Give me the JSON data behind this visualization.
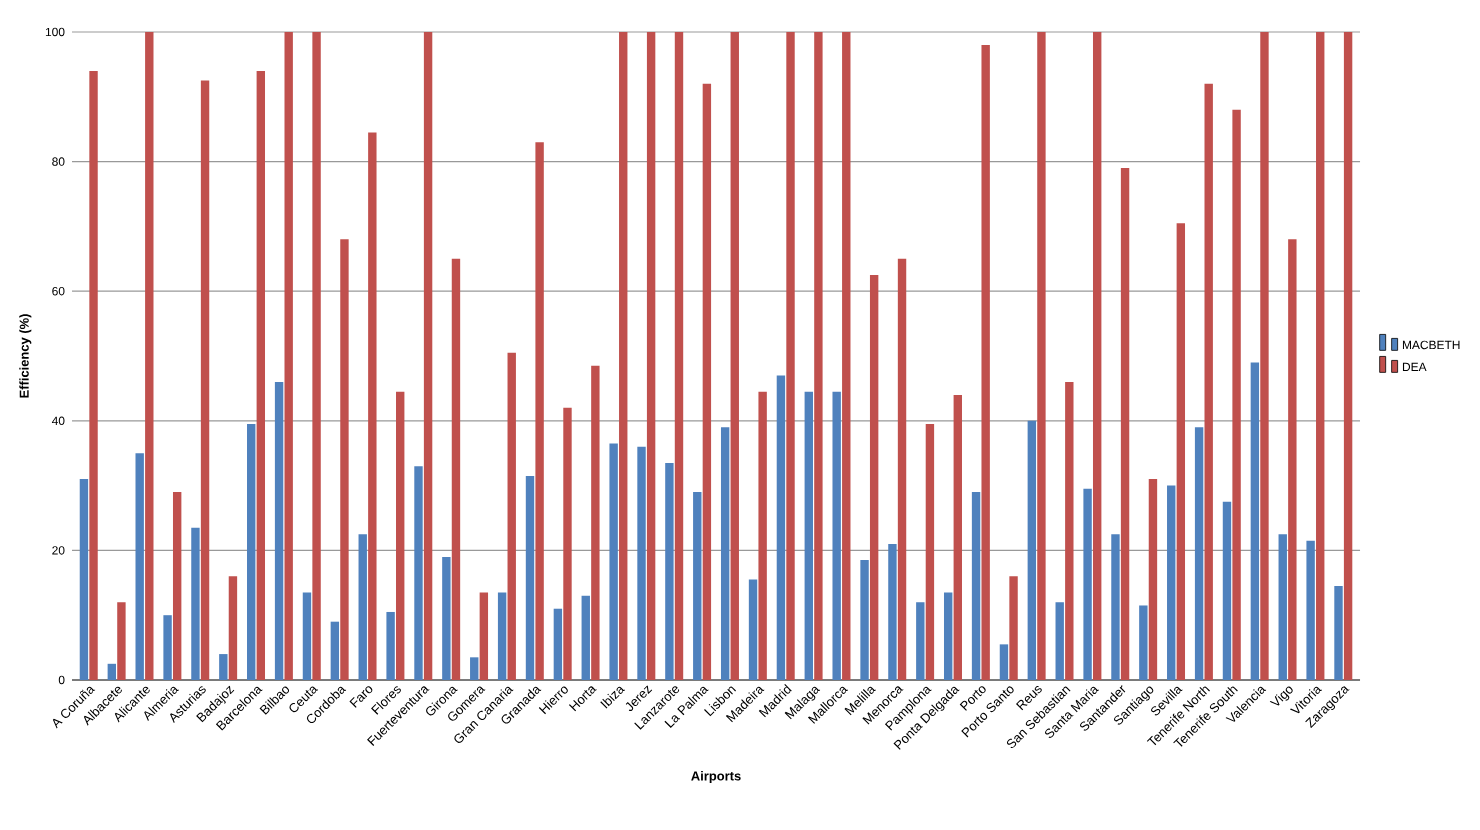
{
  "chart_data": {
    "type": "bar",
    "xlabel": "Airports",
    "ylabel": "Efficiency (%)",
    "categories": [
      "A Coruña",
      "Albacete",
      "Alicante",
      "Almeria",
      "Asturias",
      "Badajoz",
      "Barcelona",
      "Bilbao",
      "Ceuta",
      "Cordoba",
      "Faro",
      "Flores",
      "Fuerteventura",
      "Girona",
      "Gomera",
      "Gran Canaria",
      "Granada",
      "Hierro",
      "Horta",
      "Ibiza",
      "Jerez",
      "Lanzarote",
      "La Palma",
      "Lisbon",
      "Madeira",
      "Madrid",
      "Malaga",
      "Mallorca",
      "Melilla",
      "Menorca",
      "Pamplona",
      "Ponta Delgada",
      "Porto",
      "Porto Santo",
      "Reus",
      "San Sebastian",
      "Santa Maria",
      "Santander",
      "Santiago",
      "Sevilla",
      "Tenerife North",
      "Tenerife South",
      "Valencia",
      "Vigo",
      "Vitoria",
      "Zaragoza"
    ],
    "series": [
      {
        "name": "MACBETH",
        "color": "#4f81bd",
        "values": [
          31,
          2.5,
          35,
          10,
          23.5,
          4,
          39.5,
          46,
          13.5,
          9,
          22.5,
          10.5,
          33,
          19,
          3.5,
          13.5,
          31.5,
          11,
          13,
          36.5,
          36,
          33.5,
          29,
          39,
          15.5,
          47,
          44.5,
          44.5,
          18.5,
          21,
          12,
          13.5,
          29,
          5.5,
          40,
          12,
          29.5,
          22.5,
          11.5,
          30,
          39,
          27.5,
          49,
          22.5,
          21.5,
          14.5
        ]
      },
      {
        "name": "DEA",
        "color": "#c0504d",
        "values": [
          94,
          12,
          100,
          29,
          92.5,
          16,
          94,
          100,
          100,
          68,
          84.5,
          44.5,
          100,
          65,
          13.5,
          50.5,
          83,
          42,
          48.5,
          100,
          100,
          100,
          92,
          100,
          44.5,
          100,
          100,
          100,
          62.5,
          65,
          39.5,
          44,
          98,
          16,
          100,
          46,
          100,
          79,
          31,
          70.5,
          92,
          88,
          100,
          68,
          100,
          100
        ]
      }
    ],
    "ylim": [
      0,
      100
    ],
    "yticks": [
      0,
      20,
      40,
      60,
      80,
      100
    ],
    "grid": "y",
    "legend": "right"
  }
}
